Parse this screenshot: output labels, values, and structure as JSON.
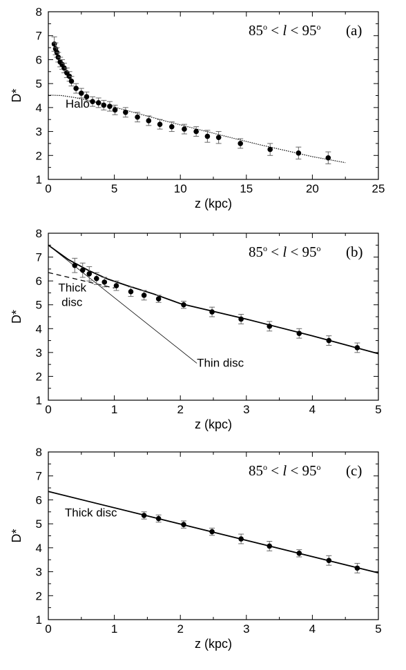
{
  "chart_data": [
    {
      "type": "scatter",
      "panel_label": "(a)",
      "range_text": {
        "left": "85",
        "deg": "o",
        "mid": " < ",
        "var": "l",
        "mid2": " < ",
        "right": "95",
        "deg2": "o"
      },
      "xlabel": "z (kpc)",
      "ylabel": "D*",
      "xlim": [
        0,
        25
      ],
      "ylim": [
        1,
        8
      ],
      "xticks": [
        0,
        5,
        10,
        15,
        20,
        25
      ],
      "yticks": [
        1,
        2,
        3,
        4,
        5,
        6,
        7,
        8
      ],
      "points": {
        "x": [
          0.45,
          0.55,
          0.65,
          0.75,
          0.9,
          1.05,
          1.2,
          1.4,
          1.6,
          1.75,
          2.1,
          2.5,
          2.9,
          3.35,
          3.8,
          4.2,
          4.65,
          5.05,
          5.85,
          6.75,
          7.6,
          8.45,
          9.35,
          10.3,
          11.2,
          12.05,
          12.9,
          14.55,
          16.8,
          18.95,
          21.2
        ],
        "y": [
          6.65,
          6.45,
          6.3,
          6.1,
          5.9,
          5.8,
          5.65,
          5.45,
          5.3,
          5.1,
          4.8,
          4.6,
          4.45,
          4.25,
          4.2,
          4.1,
          4.05,
          3.9,
          3.8,
          3.6,
          3.45,
          3.3,
          3.2,
          3.1,
          3.0,
          2.8,
          2.75,
          2.5,
          2.25,
          2.1,
          1.9
        ],
        "err": [
          0.3,
          0.25,
          0.2,
          0.2,
          0.2,
          0.2,
          0.2,
          0.2,
          0.2,
          0.2,
          0.2,
          0.2,
          0.2,
          0.2,
          0.2,
          0.2,
          0.2,
          0.2,
          0.2,
          0.2,
          0.2,
          0.2,
          0.2,
          0.2,
          0.2,
          0.25,
          0.25,
          0.2,
          0.25,
          0.25,
          0.25
        ]
      },
      "curves": [
        {
          "name": "Halo",
          "style": "dotted",
          "x": [
            0,
            1,
            2,
            3,
            4,
            5,
            6,
            7,
            8,
            9,
            10,
            12,
            14,
            16,
            18,
            20,
            22.5
          ],
          "y": [
            4.52,
            4.5,
            4.42,
            4.3,
            4.17,
            4.02,
            3.87,
            3.72,
            3.57,
            3.42,
            3.28,
            3.0,
            2.72,
            2.45,
            2.2,
            1.95,
            1.7
          ]
        }
      ],
      "annotations": [
        {
          "text": "Halo",
          "x": 1.3,
          "y": 4.0
        }
      ]
    },
    {
      "type": "scatter",
      "panel_label": "(b)",
      "range_text": {
        "left": "85",
        "deg": "o",
        "mid": " < ",
        "var": "l",
        "mid2": " < ",
        "right": "95",
        "deg2": "o"
      },
      "xlabel": "z (kpc)",
      "ylabel": "D*",
      "xlim": [
        0,
        5
      ],
      "ylim": [
        1,
        8
      ],
      "xticks": [
        0,
        1,
        2,
        3,
        4,
        5
      ],
      "yticks": [
        1,
        2,
        3,
        4,
        5,
        6,
        7,
        8
      ],
      "points": {
        "x": [
          0.4,
          0.52,
          0.62,
          0.73,
          0.85,
          1.03,
          1.25,
          1.45,
          1.67,
          2.05,
          2.48,
          2.92,
          3.35,
          3.8,
          4.25,
          4.68
        ],
        "y": [
          6.65,
          6.45,
          6.3,
          6.1,
          5.95,
          5.8,
          5.55,
          5.4,
          5.25,
          5.0,
          4.7,
          4.4,
          4.1,
          3.8,
          3.5,
          3.2
        ],
        "err": [
          0.3,
          0.3,
          0.3,
          0.25,
          0.2,
          0.2,
          0.2,
          0.2,
          0.15,
          0.15,
          0.2,
          0.2,
          0.2,
          0.2,
          0.2,
          0.2
        ]
      },
      "curves": [
        {
          "name": "Thin disc",
          "style": "thin",
          "x": [
            0,
            2.25
          ],
          "y": [
            7.5,
            2.55
          ]
        },
        {
          "name": "Thick disc",
          "style": "dashed",
          "x": [
            0,
            1.0
          ],
          "y": [
            6.35,
            5.7
          ]
        },
        {
          "name": "Total",
          "style": "solid",
          "x": [
            0,
            0.3,
            0.6,
            0.9,
            1.2,
            1.6,
            2.0,
            3.0,
            4.0,
            5.0
          ],
          "y": [
            7.5,
            6.9,
            6.45,
            6.08,
            5.8,
            5.45,
            5.05,
            4.4,
            3.7,
            2.95
          ]
        }
      ],
      "annotations": [
        {
          "text": "Thick",
          "x": 0.15,
          "y": 5.55
        },
        {
          "text": "disc",
          "x": 0.2,
          "y": 4.95
        },
        {
          "text": "Thin disc",
          "x": 2.25,
          "y": 2.4
        }
      ]
    },
    {
      "type": "scatter",
      "panel_label": "(c)",
      "range_text": {
        "left": "85",
        "deg": "o",
        "mid": " < ",
        "var": "l",
        "mid2": " < ",
        "right": "95",
        "deg2": "o"
      },
      "xlabel": "z (kpc)",
      "ylabel": "D*",
      "xlim": [
        0,
        5
      ],
      "ylim": [
        1,
        8
      ],
      "xticks": [
        0,
        1,
        2,
        3,
        4,
        5
      ],
      "yticks": [
        1,
        2,
        3,
        4,
        5,
        6,
        7,
        8
      ],
      "points": {
        "x": [
          1.45,
          1.67,
          2.05,
          2.48,
          2.92,
          3.35,
          3.8,
          4.25,
          4.68
        ],
        "y": [
          5.35,
          5.22,
          4.97,
          4.67,
          4.37,
          4.07,
          3.77,
          3.47,
          3.15
        ],
        "err": [
          0.15,
          0.15,
          0.15,
          0.15,
          0.2,
          0.2,
          0.15,
          0.2,
          0.2
        ]
      },
      "curves": [
        {
          "name": "Thick disc",
          "style": "solid",
          "x": [
            0,
            5
          ],
          "y": [
            6.35,
            2.95
          ]
        }
      ],
      "annotations": [
        {
          "text": "Thick disc",
          "x": 0.25,
          "y": 5.3
        }
      ]
    }
  ]
}
